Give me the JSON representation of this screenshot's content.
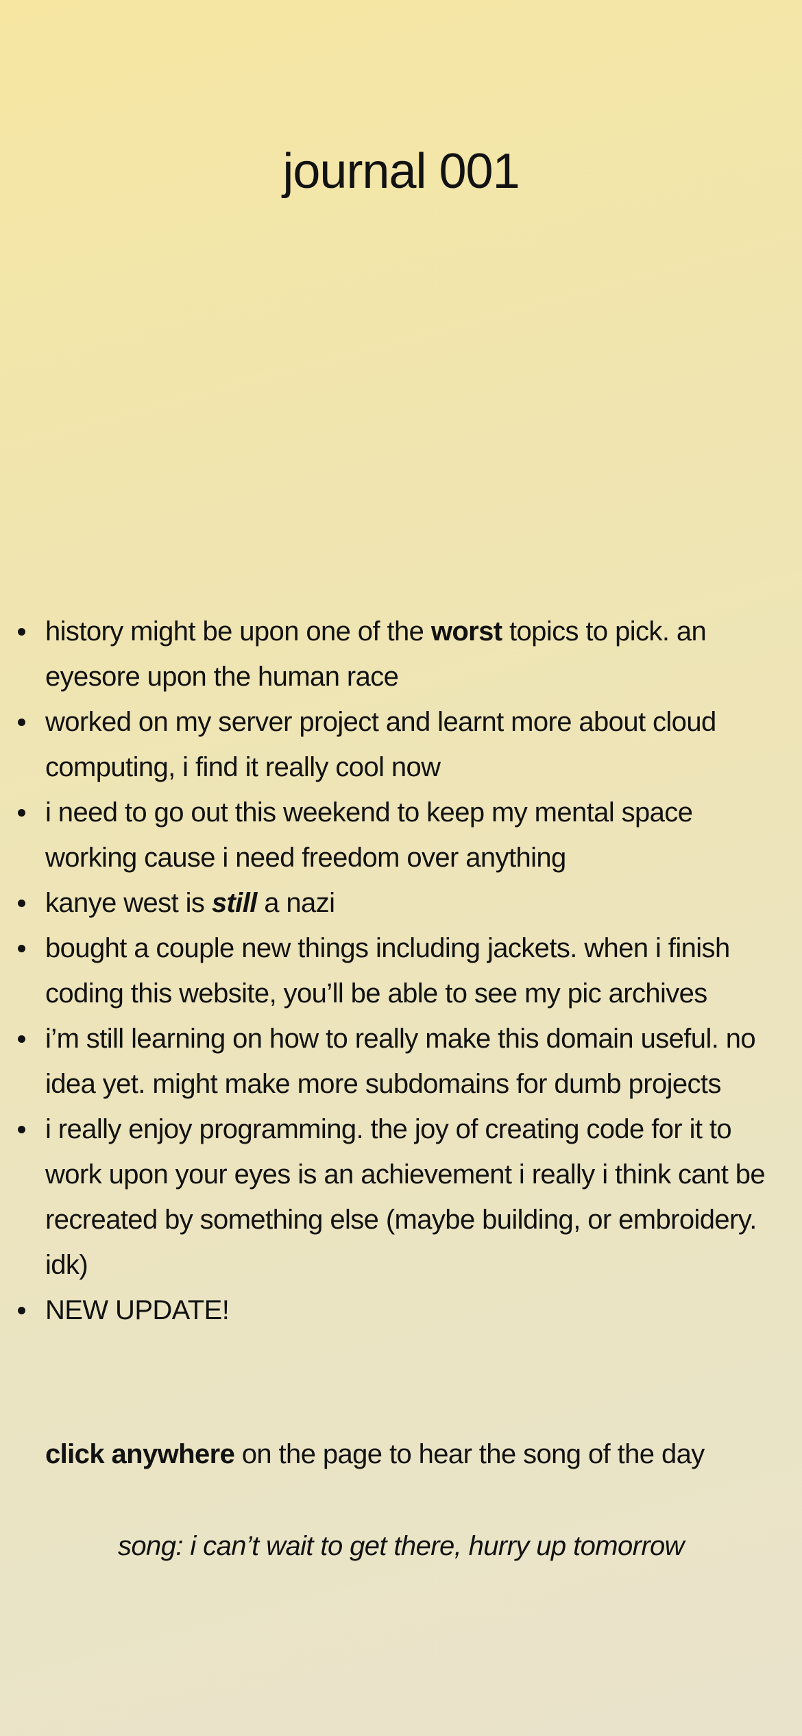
{
  "title": "journal 001",
  "entries": [
    {
      "before": "history might be upon one of the ",
      "em": "worst",
      "after": " topics to pick. an eyesore upon the human race"
    },
    {
      "text": "worked on my server project and learnt more about cloud computing, i find it really cool now"
    },
    {
      "text": "i need to go out this weekend to keep my mental space working cause i need freedom over anything"
    },
    {
      "before": "kanye west is ",
      "em": "still",
      "after": " a nazi"
    },
    {
      "text": "bought a couple new things including jackets. when i finish coding this website, you’ll be able to see my pic archives"
    },
    {
      "text": "i’m still learning on how to really make this domain useful. no idea yet. might make more subdomains for dumb projects"
    },
    {
      "text": "i really enjoy programming. the joy of creating code for it to work upon your eyes is an achievement i really i think cant be recreated by something else (maybe building, or embroidery. idk)"
    },
    {
      "text": "NEW UPDATE!"
    }
  ],
  "cta": {
    "bold": "click anywhere",
    "rest": " on the page to hear the song of the day"
  },
  "song": "song: i can’t wait to get there, hurry up tomorrow"
}
